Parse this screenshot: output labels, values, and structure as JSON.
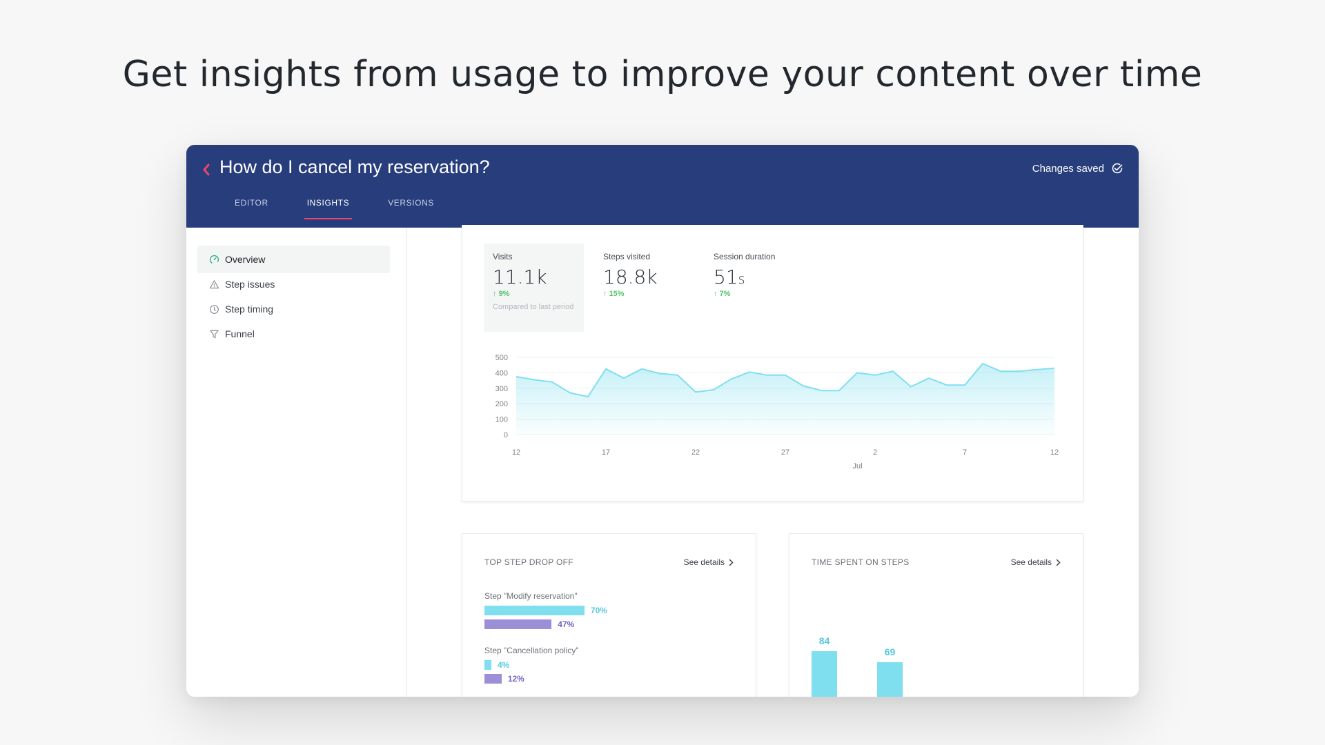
{
  "headline": "Get insights from usage to improve your content over time",
  "header": {
    "title": "How do I cancel my reservation?",
    "status": "Changes saved",
    "tabs": [
      {
        "label": "EDITOR",
        "active": false
      },
      {
        "label": "INSIGHTS",
        "active": true
      },
      {
        "label": "VERSIONS",
        "active": false
      }
    ],
    "colors": {
      "bar": "#283d7c",
      "accent": "#e8466f"
    }
  },
  "sidebar": {
    "items": [
      {
        "label": "Overview",
        "icon": "gauge-icon",
        "active": true
      },
      {
        "label": "Step issues",
        "icon": "warning-icon",
        "active": false
      },
      {
        "label": "Step timing",
        "icon": "clock-icon",
        "active": false
      },
      {
        "label": "Funnel",
        "icon": "funnel-icon",
        "active": false
      }
    ]
  },
  "metrics": [
    {
      "label": "Visits",
      "value": "11.1k",
      "unit": "",
      "delta": "9%",
      "note": "Compared to last period",
      "selected": true
    },
    {
      "label": "Steps visited",
      "value": "18.8k",
      "unit": "",
      "delta": "15%",
      "note": "",
      "selected": false
    },
    {
      "label": "Session duration",
      "value": "51",
      "unit": "s",
      "delta": "7%",
      "note": "",
      "selected": false
    }
  ],
  "chart_data": [
    {
      "type": "area",
      "x_ticks": [
        "12",
        "17",
        "22",
        "27",
        "2",
        "7",
        "12"
      ],
      "x_month_label": "Jul",
      "y_ticks": [
        "500",
        "400",
        "300",
        "200",
        "100",
        "0"
      ],
      "ylim": [
        0,
        500
      ],
      "grid": true,
      "color": "#7fdfee",
      "values": [
        375,
        355,
        340,
        270,
        245,
        425,
        365,
        425,
        395,
        385,
        275,
        290,
        360,
        405,
        385,
        385,
        315,
        285,
        285,
        400,
        385,
        410,
        310,
        365,
        320,
        320,
        460,
        410,
        410,
        420,
        430
      ]
    },
    {
      "type": "bar",
      "title": "TOP STEP DROP OFF",
      "orientation": "horizontal",
      "categories": [
        "Step \"Modify reservation\"",
        "Step \"Cancellation policy\""
      ],
      "series": [
        {
          "values": [
            70,
            4
          ],
          "color": "#7fdfee"
        },
        {
          "values": [
            47,
            12
          ],
          "color": "#9c8fd8"
        }
      ],
      "value_suffix": "%"
    },
    {
      "type": "bar",
      "title": "TIME SPENT ON STEPS",
      "values": [
        84,
        69
      ],
      "color": "#7fdfee"
    }
  ],
  "cards": {
    "drop_title": "TOP STEP DROP OFF",
    "time_title": "TIME SPENT ON STEPS",
    "see_details": "See details",
    "step_labels": [
      "Step \"Modify reservation\"",
      "Step \"Cancellation policy\""
    ],
    "drop_values": [
      [
        "70%",
        "47%"
      ],
      [
        "4%",
        "12%"
      ]
    ],
    "time_values": [
      "84",
      "69"
    ]
  }
}
